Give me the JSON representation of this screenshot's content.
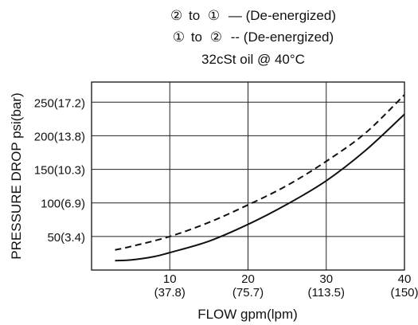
{
  "chart_data": {
    "type": "line",
    "legend": {
      "placement": "top-center",
      "entries": [
        {
          "from_symbol": "②",
          "to_symbol": "①",
          "connector": "to",
          "line_style": "solid",
          "swatch_text": "—",
          "label": "(De-energized)"
        },
        {
          "from_symbol": "①",
          "to_symbol": "②",
          "connector": "to",
          "line_style": "dashed",
          "swatch_text": "--",
          "label": "(De-energized)"
        }
      ],
      "condition": "32cSt oil @ 40°C"
    },
    "xlabel": "FLOW gpm(lpm)",
    "ylabel": "PRESSURE DROP psi(bar)",
    "xlim": [
      0,
      40
    ],
    "ylim": [
      0,
      280
    ],
    "grid": true,
    "x_ticks": [
      {
        "value": 10,
        "line1": "10",
        "line2": "(37.8)"
      },
      {
        "value": 20,
        "line1": "20",
        "line2": "(75.7)"
      },
      {
        "value": 30,
        "line1": "30",
        "line2": "(113.5)"
      },
      {
        "value": 40,
        "line1": "40",
        "line2": "(150)"
      }
    ],
    "y_ticks": [
      {
        "value": 50,
        "label": "50(3.4)"
      },
      {
        "value": 100,
        "label": "100(6.9)"
      },
      {
        "value": 150,
        "label": "150(10.3)"
      },
      {
        "value": 200,
        "label": "200(13.8)"
      },
      {
        "value": 250,
        "label": "250(17.2)"
      }
    ],
    "series": [
      {
        "style": "solid",
        "x": [
          3,
          5,
          8,
          10,
          15,
          20,
          25,
          30,
          35,
          40
        ],
        "y": [
          14,
          15,
          20,
          26,
          43,
          68,
          98,
          133,
          178,
          232
        ]
      },
      {
        "style": "dashed",
        "x": [
          3,
          5,
          10,
          15,
          20,
          25,
          30,
          35,
          40
        ],
        "y": [
          30,
          35,
          50,
          71,
          97,
          126,
          162,
          204,
          261
        ]
      }
    ]
  }
}
